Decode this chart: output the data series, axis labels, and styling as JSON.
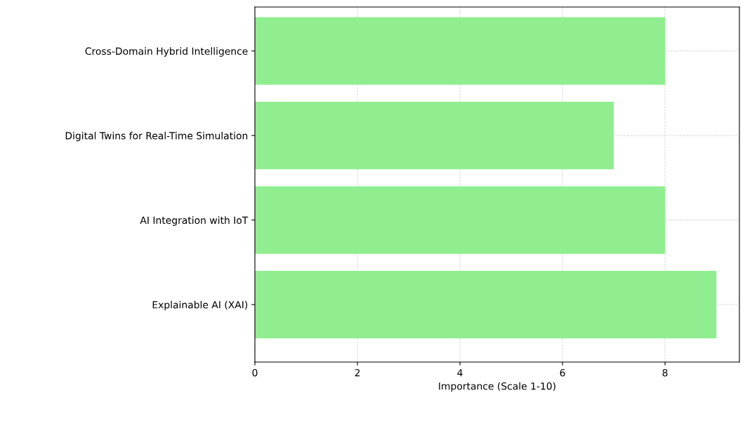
{
  "chart_data": {
    "type": "bar",
    "orientation": "horizontal",
    "xlabel": "Importance (Scale 1-10)",
    "categories": [
      "Cross-Domain Hybrid Intelligence",
      "Digital Twins for Real-Time Simulation",
      "AI Integration with IoT",
      "Explainable AI (XAI)"
    ],
    "values": [
      8,
      7,
      8,
      9
    ],
    "color": "#90ee90",
    "xlim": [
      0,
      9.45
    ],
    "xticks": [
      0,
      2,
      4,
      6,
      8
    ],
    "grid": true,
    "line_style": "dashed"
  }
}
